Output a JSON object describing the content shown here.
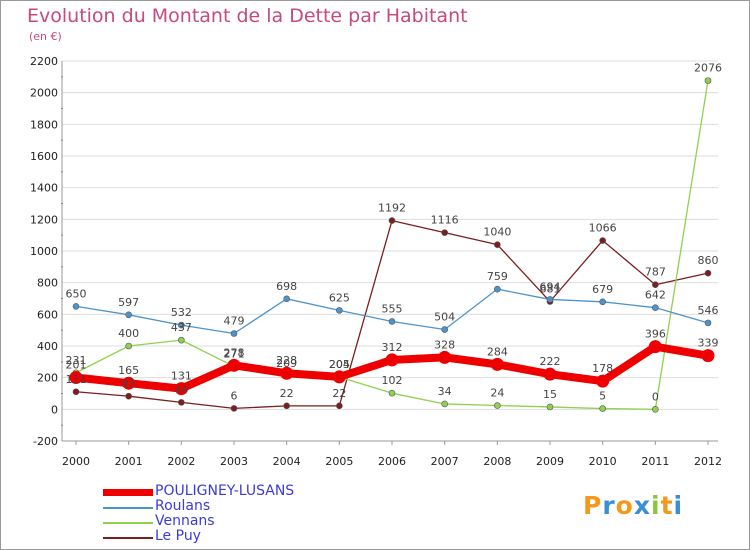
{
  "header": {
    "title": "Evolution du Montant de la Dette par Habitant",
    "subtitle": "(en €)"
  },
  "logo": {
    "text": "Proxiti",
    "colors": [
      "#f39a1e",
      "#3a8fd4",
      "#f39a1e",
      "#3a8fd4",
      "#8cc63f",
      "#f39a1e",
      "#3a8fd4"
    ]
  },
  "chart_data": {
    "type": "line",
    "title": "Evolution du Montant de la Dette par Habitant",
    "subtitle": "(en €)",
    "x": [
      "2000",
      "2001",
      "2002",
      "2003",
      "2004",
      "2005",
      "2006",
      "2007",
      "2008",
      "2009",
      "2010",
      "2011",
      "2012"
    ],
    "ylim": [
      -200,
      2200
    ],
    "yticks": [
      -200,
      0,
      200,
      400,
      600,
      800,
      1000,
      1200,
      1400,
      1600,
      1800,
      2000,
      2200
    ],
    "grid": "horizontal",
    "legend_position": "bottom-left",
    "series": [
      {
        "name": "POULIGNEY-LUSANS",
        "color": "#ee0000",
        "values": [
          201,
          165,
          131,
          278,
          228,
          205,
          312,
          328,
          284,
          222,
          178,
          396,
          339
        ]
      },
      {
        "name": "Roulans",
        "color": "#4d94cc",
        "values": [
          650,
          597,
          532,
          479,
          698,
          625,
          555,
          504,
          759,
          694,
          679,
          642,
          546
        ]
      },
      {
        "name": "Vennans",
        "color": "#8fd14f",
        "values": [
          231,
          400,
          437,
          271,
          209,
          204,
          102,
          34,
          24,
          15,
          5,
          0,
          2076
        ]
      },
      {
        "name": "Le Puy",
        "color": "#7a1e1e",
        "values": [
          111,
          83,
          44,
          6,
          22,
          22,
          1192,
          1116,
          1040,
          681,
          1066,
          787,
          860
        ]
      }
    ]
  }
}
